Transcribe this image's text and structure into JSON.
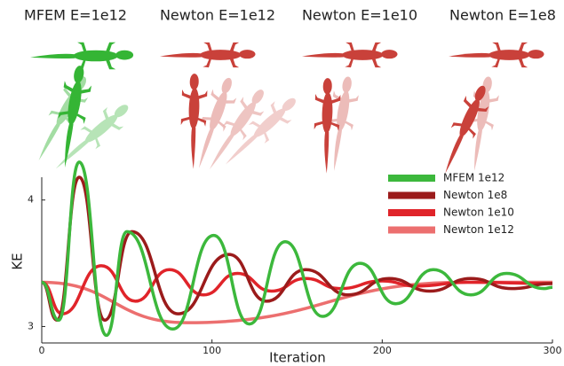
{
  "panels": [
    {
      "label": "MFEM E=1e12"
    },
    {
      "label": "Newton E=1e12"
    },
    {
      "label": "Newton E=1e10"
    },
    {
      "label": "Newton E=1e8"
    }
  ],
  "chart_data": {
    "type": "line",
    "xlabel": "Iteration",
    "ylabel": "KE",
    "xlim": [
      0,
      300
    ],
    "xticks": [
      0,
      100,
      200,
      300
    ],
    "ylim": [
      2.87,
      4.18
    ],
    "yticks": [
      3,
      4
    ],
    "legend": "upper right",
    "series": [
      {
        "name": "MFEM 1e12",
        "color": "#3cb83c",
        "x": [
          0,
          10,
          22,
          38,
          50,
          77,
          101,
          122,
          143,
          165,
          187,
          208,
          230,
          252,
          273,
          295,
          300
        ],
        "values": [
          3.35,
          3.05,
          4.3,
          2.93,
          3.75,
          2.98,
          3.72,
          3.02,
          3.67,
          3.08,
          3.5,
          3.18,
          3.45,
          3.25,
          3.42,
          3.3,
          3.31
        ]
      },
      {
        "name": "Newton 1e8",
        "color": "#9b1b1b",
        "x": [
          0,
          9,
          22,
          37,
          53,
          80,
          110,
          132,
          155,
          180,
          204,
          228,
          252,
          276,
          300
        ],
        "values": [
          3.35,
          3.05,
          4.18,
          3.05,
          3.75,
          3.1,
          3.57,
          3.2,
          3.45,
          3.25,
          3.38,
          3.28,
          3.38,
          3.3,
          3.34
        ]
      },
      {
        "name": "Newton 1e10",
        "color": "#e0242a",
        "x": [
          0,
          12,
          35,
          55,
          75,
          95,
          115,
          135,
          155,
          175,
          200,
          220,
          250,
          300
        ],
        "values": [
          3.35,
          3.1,
          3.48,
          3.2,
          3.45,
          3.25,
          3.42,
          3.28,
          3.38,
          3.3,
          3.36,
          3.32,
          3.35,
          3.34
        ]
      },
      {
        "name": "Newton 1e12",
        "color": "#ec6f6f",
        "x": [
          0,
          85,
          250,
          300
        ],
        "values": [
          3.35,
          3.03,
          3.35,
          3.35
        ]
      }
    ]
  }
}
